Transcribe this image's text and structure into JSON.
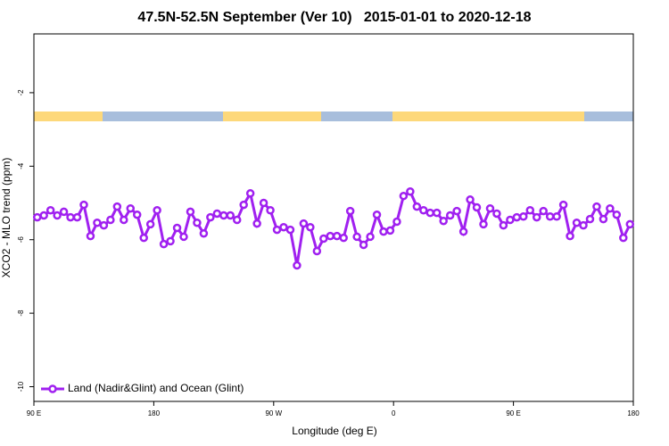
{
  "chart_data": {
    "type": "line",
    "title": "47.5N-52.5N September (Ver 10)   2015-01-01 to 2020-12-18",
    "x_label": "Longitude (deg E)",
    "y_label": "XCO2 - MLO trend (ppm)",
    "x": [
      92.5,
      97.5,
      102.5,
      107.5,
      112.5,
      117.5,
      122.5,
      127.5,
      132.5,
      137.5,
      142.5,
      147.5,
      152.5,
      157.5,
      162.5,
      167.5,
      172.5,
      177.5,
      182.5,
      187.5,
      192.5,
      197.5,
      202.5,
      207.5,
      212.5,
      217.5,
      222.5,
      227.5,
      232.5,
      237.5,
      242.5,
      247.5,
      252.5,
      257.5,
      262.5,
      267.5,
      272.5,
      277.5,
      282.5,
      287.5,
      292.5,
      297.5,
      302.5,
      307.5,
      312.5,
      317.5,
      322.5,
      327.5,
      332.5,
      337.5,
      342.5,
      347.5,
      352.5,
      357.5,
      362.5,
      367.5,
      372.5,
      377.5,
      382.5,
      387.5,
      392.5,
      397.5,
      402.5,
      407.5,
      412.5,
      417.5,
      422.5,
      427.5,
      432.5,
      437.5,
      442.5,
      447.5,
      452.5,
      457.5,
      462.5,
      467.5,
      472.5,
      477.5,
      482.5,
      487.5,
      492.5,
      497.5,
      502.5,
      507.5,
      512.5,
      517.5,
      522.5,
      527.5,
      532.5,
      537.5
    ],
    "series": [
      {
        "name": "Land (Nadir&Glint) and Ocean (Glint)",
        "color": "#a020f0",
        "values": [
          -5.39,
          -5.34,
          -5.2,
          -5.34,
          -5.24,
          -5.39,
          -5.39,
          -5.05,
          -5.9,
          -5.54,
          -5.61,
          -5.46,
          -5.1,
          -5.46,
          -5.15,
          -5.32,
          -5.95,
          -5.58,
          -5.2,
          -6.12,
          -6.04,
          -5.68,
          -5.92,
          -5.24,
          -5.54,
          -5.83,
          -5.39,
          -5.29,
          -5.34,
          -5.34,
          -5.46,
          -5.05,
          -4.74,
          -5.56,
          -5.0,
          -5.2,
          -5.73,
          -5.66,
          -5.73,
          -6.7,
          -5.56,
          -5.66,
          -6.31,
          -5.97,
          -5.9,
          -5.9,
          -5.95,
          -5.22,
          -5.92,
          -6.14,
          -5.92,
          -5.32,
          -5.78,
          -5.75,
          -5.51,
          -4.81,
          -4.69,
          -5.1,
          -5.2,
          -5.27,
          -5.27,
          -5.49,
          -5.34,
          -5.22,
          -5.78,
          -4.91,
          -5.12,
          -5.58,
          -5.15,
          -5.29,
          -5.61,
          -5.46,
          -5.39,
          -5.37,
          -5.2,
          -5.39,
          -5.22,
          -5.37,
          -5.37,
          -5.05,
          -5.9,
          -5.54,
          -5.61,
          -5.44,
          -5.1,
          -5.44,
          -5.15,
          -5.32,
          -5.95,
          -5.58
        ]
      }
    ],
    "xlim": [
      90,
      540
    ],
    "xticks": [
      {
        "value": 90,
        "label": "90 E"
      },
      180,
      {
        "value": 270,
        "label": "90 W"
      },
      {
        "value": 360,
        "label": "0"
      },
      {
        "value": 450,
        "label": "90 E"
      },
      {
        "value": 540,
        "label": "180"
      }
    ],
    "ylim": [
      -10.4,
      -0.4
    ],
    "yticks": [
      -2,
      -4,
      -6,
      -8,
      -10
    ],
    "grid": false,
    "legend": "bottom-left"
  }
}
